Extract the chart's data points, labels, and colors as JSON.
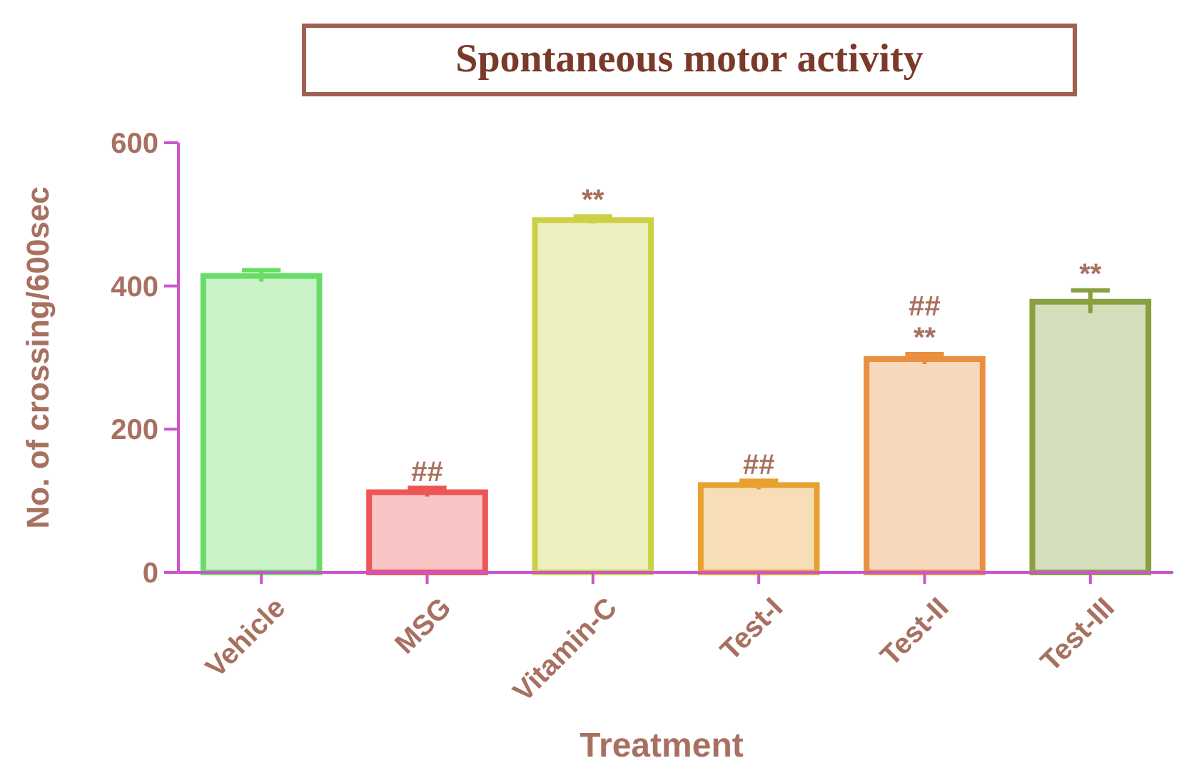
{
  "chart_data": {
    "type": "bar",
    "title": "Spontaneous motor activity",
    "xlabel": "Treatment",
    "ylabel": "No. of crossing/600sec",
    "categories": [
      "Vehicle",
      "MSG",
      "Vitamin-C",
      "Test-I",
      "Test-II",
      "Test-III"
    ],
    "values": [
      414,
      112,
      492,
      122,
      298,
      378
    ],
    "errors": [
      8,
      6,
      5,
      6,
      7,
      16
    ],
    "colors": [
      "#66dd66",
      "#ee5555",
      "#ccd044",
      "#e8a030",
      "#e89040",
      "#88a040"
    ],
    "ylim": [
      0,
      600
    ],
    "yticks": [
      0,
      200,
      400,
      600
    ],
    "annotations": [
      {
        "text": "##",
        "x": "MSG",
        "y": 118
      },
      {
        "text": "**",
        "x": "Vitamin-C",
        "y": 497
      },
      {
        "text": "##",
        "x": "Test-I",
        "y": 128
      },
      {
        "text": "**",
        "x": "Test-II",
        "y": 305
      },
      {
        "text": "##",
        "x": "Test-II",
        "y": 305
      },
      {
        "text": "**",
        "x": "Test-III",
        "y": 394
      }
    ]
  }
}
